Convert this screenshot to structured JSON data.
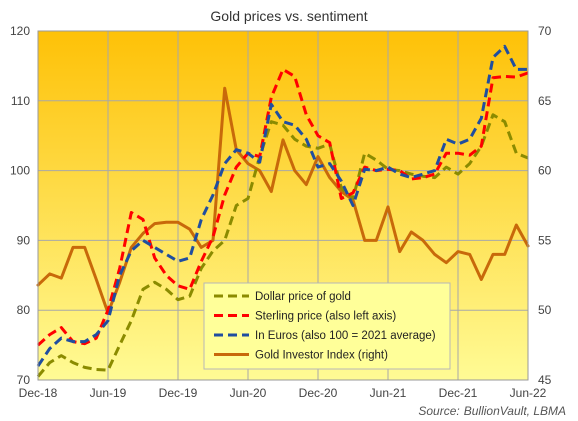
{
  "chart_data": {
    "type": "line",
    "title": "Gold prices vs. sentiment",
    "source_label": "Source:",
    "source_text": "BullionVault, LBMA",
    "x_ticks": [
      "Dec-18",
      "Jun-19",
      "Dec-19",
      "Jun-20",
      "Dec-20",
      "Jun-21",
      "Dec-21",
      "Jun-22"
    ],
    "x_range": [
      "Dec-18",
      "Jun-22"
    ],
    "ylim_left": [
      70,
      120
    ],
    "yticks_left": [
      70,
      80,
      90,
      100,
      110,
      120
    ],
    "ylim_right": [
      45,
      70
    ],
    "yticks_right": [
      45,
      50,
      55,
      60,
      65,
      70
    ],
    "grid": true,
    "legend_position": "bottom-center",
    "background_gradient": [
      "#fec107",
      "#fffb95"
    ],
    "series": [
      {
        "name": "Dollar price of gold",
        "axis": "left",
        "color": "#8b8b00",
        "dash": true,
        "values": [
          70.5,
          72.5,
          73.5,
          72.5,
          71.8,
          71.5,
          71.4,
          75,
          78.5,
          83,
          84,
          83,
          81.5,
          82,
          86,
          88.5,
          90,
          95,
          96,
          102,
          107,
          106.5,
          104.5,
          103.5,
          103.2,
          103.8,
          97.5,
          96,
          102.5,
          101.5,
          100.2,
          100,
          99.5,
          99.2,
          99,
          100.5,
          99.5,
          101,
          103.5,
          108,
          107,
          102.5,
          101.8
        ]
      },
      {
        "name": "Sterling price (also left axis)",
        "axis": "left",
        "color": "#ff0000",
        "dash": true,
        "values": [
          75,
          76.5,
          77.5,
          75.5,
          75.2,
          76,
          80,
          86,
          94,
          93,
          87.5,
          85,
          83.5,
          83,
          87,
          90.5,
          96.5,
          100.5,
          102.5,
          102,
          110.5,
          114.5,
          113.5,
          108,
          105,
          104,
          96,
          96.8,
          100.5,
          100,
          100.2,
          100,
          98.8,
          99,
          99.5,
          102.5,
          102.5,
          102.2,
          103.5,
          113.3,
          113.5,
          113.4,
          114
        ]
      },
      {
        "name": "In Euros (also 100 = 2021 average)",
        "axis": "left",
        "color": "#1f4ea0",
        "dash": true,
        "values": [
          72,
          74.5,
          76,
          75.5,
          75.5,
          76.5,
          78.5,
          85,
          88.5,
          90,
          89,
          88,
          87,
          87.5,
          93,
          96.5,
          101,
          103,
          102.5,
          101.2,
          109.5,
          107,
          106.5,
          104.5,
          100.5,
          101,
          98.5,
          95,
          100.2,
          100,
          100.5,
          99.5,
          99,
          99.5,
          100,
          104.5,
          103.8,
          104.5,
          107.5,
          116.2,
          117.8,
          114.5,
          114.5
        ]
      },
      {
        "name": "Gold Investor Index (right)",
        "axis": "right",
        "color": "#c8690a",
        "dash": false,
        "values": [
          51.8,
          52.6,
          52.3,
          54.5,
          54.5,
          52.2,
          49.8,
          52,
          54.5,
          55.5,
          56.2,
          56.3,
          56.3,
          55.8,
          54.5,
          55,
          65.9,
          61.5,
          60.5,
          60,
          58.5,
          62.2,
          60,
          59,
          61,
          59.5,
          58.5,
          57.9,
          55,
          55,
          57.4,
          54.2,
          55.6,
          55,
          54,
          53.4,
          54.2,
          54,
          52.2,
          54,
          54,
          56.1,
          54.6
        ]
      }
    ]
  }
}
